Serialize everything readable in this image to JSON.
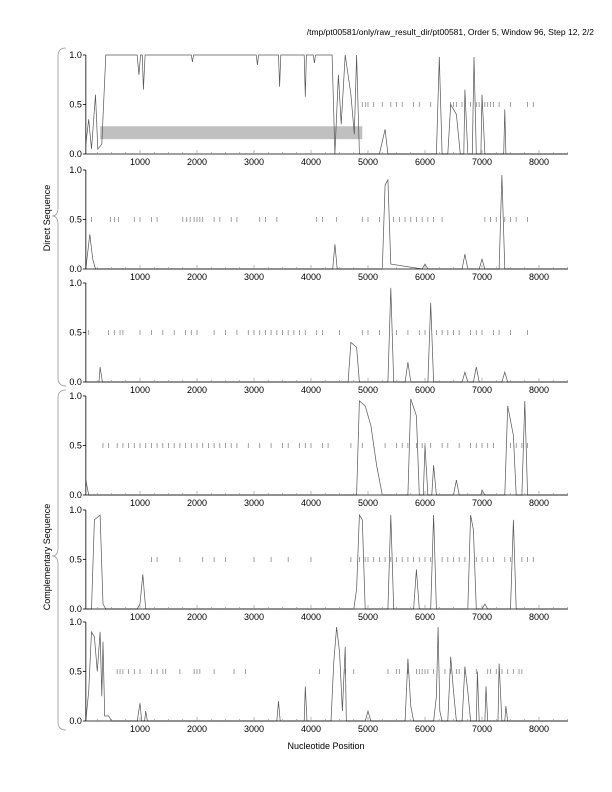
{
  "chart_data": {
    "type": "line",
    "title": "/tmp/pt00581/only/raw_result_dir/pt00581, Order 5, Window 96, Step 12, 2/2",
    "xlabel": "Nucleotide Position",
    "group_labels": [
      "Direct Sequence",
      "Complementary Sequence"
    ],
    "xlim": [
      50,
      8500
    ],
    "ylim": [
      0,
      1
    ],
    "xticks": [
      1000,
      2000,
      3000,
      4000,
      5000,
      6000,
      7000,
      8000
    ],
    "yticks": [
      "0.0",
      "0.5",
      "1.0"
    ],
    "line_color": "#555555",
    "stop_color": "#888888",
    "region_color": "#c0c0c0",
    "panels": [
      {
        "frame": 1,
        "region": [
          300,
          4900,
          0.15,
          0.28
        ],
        "points": [
          [
            50,
            0.1
          ],
          [
            100,
            0.35
          ],
          [
            150,
            0.05
          ],
          [
            220,
            0.6
          ],
          [
            260,
            0.05
          ],
          [
            330,
            0.1
          ],
          [
            400,
            1
          ],
          [
            950,
            1
          ],
          [
            980,
            0.8
          ],
          [
            1010,
            1
          ],
          [
            1040,
            1
          ],
          [
            1060,
            0.65
          ],
          [
            1090,
            1
          ],
          [
            1900,
            1
          ],
          [
            1920,
            0.93
          ],
          [
            1940,
            1
          ],
          [
            3040,
            1
          ],
          [
            3060,
            0.9
          ],
          [
            3080,
            1
          ],
          [
            3430,
            1
          ],
          [
            3450,
            0.68
          ],
          [
            3470,
            1
          ],
          [
            3880,
            1
          ],
          [
            3900,
            0.58
          ],
          [
            3920,
            1
          ],
          [
            4040,
            1
          ],
          [
            4060,
            0.92
          ],
          [
            4080,
            1
          ],
          [
            4370,
            1
          ],
          [
            4420,
            0.0
          ],
          [
            4480,
            0.8
          ],
          [
            4530,
            0.3
          ],
          [
            4600,
            1
          ],
          [
            4700,
            0.6
          ],
          [
            4760,
            0.2
          ],
          [
            4800,
            1
          ],
          [
            4850,
            0
          ],
          [
            5200,
            0
          ],
          [
            5300,
            0.25
          ],
          [
            5350,
            0
          ],
          [
            6200,
            0
          ],
          [
            6250,
            0.98
          ],
          [
            6300,
            0
          ],
          [
            6400,
            0
          ],
          [
            6450,
            0.5
          ],
          [
            6550,
            0.4
          ],
          [
            6620,
            0
          ],
          [
            6680,
            0
          ],
          [
            6700,
            0.65
          ],
          [
            6750,
            0
          ],
          [
            6830,
            0
          ],
          [
            6860,
            0.98
          ],
          [
            6900,
            0
          ],
          [
            6980,
            0
          ],
          [
            7000,
            0.6
          ],
          [
            7050,
            0
          ],
          [
            7380,
            0
          ],
          [
            7400,
            0.45
          ],
          [
            7420,
            0
          ],
          [
            8500,
            0
          ]
        ],
        "stops": [
          4900,
          4960,
          5000,
          5100,
          5250,
          5400,
          5500,
          5600,
          5800,
          5900,
          6100,
          6450,
          6500,
          6550,
          6650,
          6800,
          6900,
          6950,
          7000,
          7050,
          7100,
          7150,
          7200,
          7300,
          7500,
          7800,
          7900
        ]
      },
      {
        "frame": 2,
        "points": [
          [
            50,
            0
          ],
          [
            120,
            0.35
          ],
          [
            170,
            0.1
          ],
          [
            220,
            0
          ],
          [
            4380,
            0
          ],
          [
            4420,
            0.25
          ],
          [
            4460,
            0
          ],
          [
            5250,
            0
          ],
          [
            5300,
            0.85
          ],
          [
            5350,
            0.9
          ],
          [
            5400,
            0.05
          ],
          [
            5950,
            0
          ],
          [
            6000,
            0.05
          ],
          [
            6050,
            0
          ],
          [
            6650,
            0
          ],
          [
            6700,
            0.15
          ],
          [
            6750,
            0
          ],
          [
            6950,
            0
          ],
          [
            7000,
            0.1
          ],
          [
            7050,
            0
          ],
          [
            7300,
            0
          ],
          [
            7350,
            0.95
          ],
          [
            7400,
            0
          ],
          [
            8500,
            0
          ]
        ],
        "stops": [
          150,
          480,
          550,
          620,
          900,
          1000,
          1200,
          1300,
          1750,
          1820,
          1880,
          1950,
          2000,
          2050,
          2100,
          2300,
          2400,
          2600,
          2700,
          3100,
          3200,
          3400,
          4100,
          4200,
          4450,
          4900,
          5000,
          5200,
          5450,
          5550,
          5650,
          5750,
          5850,
          5950,
          6050,
          6150,
          6300,
          7050,
          7150,
          7250,
          7400,
          7500,
          7600,
          7800
        ]
      },
      {
        "frame": 3,
        "points": [
          [
            50,
            0
          ],
          [
            280,
            0
          ],
          [
            300,
            0.15
          ],
          [
            340,
            0
          ],
          [
            4650,
            0
          ],
          [
            4700,
            0.4
          ],
          [
            4800,
            0.35
          ],
          [
            4850,
            0
          ],
          [
            5350,
            0
          ],
          [
            5400,
            0.95
          ],
          [
            5450,
            0
          ],
          [
            5650,
            0
          ],
          [
            5700,
            0.2
          ],
          [
            5750,
            0
          ],
          [
            6050,
            0
          ],
          [
            6100,
            0.8
          ],
          [
            6150,
            0
          ],
          [
            6650,
            0
          ],
          [
            6700,
            0.1
          ],
          [
            6750,
            0
          ],
          [
            6850,
            0
          ],
          [
            6900,
            0.15
          ],
          [
            6950,
            0
          ],
          [
            7350,
            0
          ],
          [
            7400,
            0.1
          ],
          [
            7450,
            0
          ],
          [
            8500,
            0
          ]
        ],
        "stops": [
          100,
          450,
          550,
          650,
          700,
          1000,
          1200,
          1400,
          1600,
          1800,
          1900,
          2000,
          2300,
          2500,
          2700,
          2900,
          3000,
          3100,
          3200,
          3300,
          3400,
          3500,
          3600,
          3700,
          3800,
          3900,
          4100,
          4200,
          4500,
          4900,
          5000,
          5200,
          5500,
          5700,
          5900,
          6000,
          6200,
          6300,
          6400,
          6500,
          6600,
          6800,
          6900,
          7000,
          7200,
          7300,
          7500,
          7800
        ]
      },
      {
        "frame": 4,
        "points": [
          [
            50,
            0.15
          ],
          [
            100,
            0
          ],
          [
            4800,
            0
          ],
          [
            4850,
            0.95
          ],
          [
            4950,
            0.9
          ],
          [
            5050,
            0.7
          ],
          [
            5150,
            0.3
          ],
          [
            5250,
            0
          ],
          [
            5700,
            0
          ],
          [
            5750,
            0.97
          ],
          [
            5850,
            0.8
          ],
          [
            5900,
            0
          ],
          [
            5970,
            0
          ],
          [
            6000,
            0.5
          ],
          [
            6050,
            0
          ],
          [
            6120,
            0
          ],
          [
            6150,
            0.3
          ],
          [
            6200,
            0
          ],
          [
            6500,
            0
          ],
          [
            6550,
            0.15
          ],
          [
            6600,
            0
          ],
          [
            6980,
            0
          ],
          [
            7000,
            0.05
          ],
          [
            7050,
            0
          ],
          [
            7400,
            0
          ],
          [
            7450,
            0.9
          ],
          [
            7550,
            0.6
          ],
          [
            7600,
            0
          ],
          [
            7700,
            0
          ],
          [
            7750,
            0.95
          ],
          [
            7800,
            0
          ],
          [
            8500,
            0
          ]
        ],
        "stops": [
          350,
          450,
          600,
          700,
          800,
          900,
          1000,
          1100,
          1200,
          1300,
          1400,
          1500,
          1600,
          1700,
          1800,
          1900,
          2000,
          2100,
          2200,
          2300,
          2400,
          2500,
          2600,
          2700,
          2900,
          3100,
          3300,
          3500,
          3600,
          3800,
          3900,
          4000,
          4200,
          4300,
          4700,
          4900,
          5300,
          5500,
          5600,
          5700,
          5850,
          5950,
          6000,
          6100,
          6300,
          6400,
          6600,
          6800,
          6900,
          7000,
          7100,
          7200,
          7500,
          7600,
          7700,
          7800
        ]
      },
      {
        "frame": 5,
        "points": [
          [
            50,
            0
          ],
          [
            150,
            0
          ],
          [
            200,
            0.9
          ],
          [
            300,
            0.95
          ],
          [
            350,
            0.05
          ],
          [
            400,
            0
          ],
          [
            950,
            0
          ],
          [
            1000,
            0.05
          ],
          [
            1050,
            0.35
          ],
          [
            1100,
            0
          ],
          [
            4750,
            0
          ],
          [
            4800,
            0.2
          ],
          [
            4850,
            0.95
          ],
          [
            4900,
            0.9
          ],
          [
            4950,
            0
          ],
          [
            5350,
            0
          ],
          [
            5400,
            0.95
          ],
          [
            5450,
            0
          ],
          [
            5800,
            0
          ],
          [
            5850,
            0.4
          ],
          [
            5900,
            0
          ],
          [
            6100,
            0
          ],
          [
            6150,
            0.95
          ],
          [
            6200,
            0
          ],
          [
            6750,
            0
          ],
          [
            6800,
            0.95
          ],
          [
            6850,
            0.8
          ],
          [
            6900,
            0
          ],
          [
            7000,
            0
          ],
          [
            7050,
            0.05
          ],
          [
            7100,
            0
          ],
          [
            7500,
            0
          ],
          [
            7550,
            0.9
          ],
          [
            7600,
            0
          ],
          [
            8500,
            0
          ]
        ],
        "stops": [
          1200,
          1300,
          1700,
          2100,
          2300,
          2500,
          3000,
          3300,
          3600,
          4000,
          4700,
          4850,
          4950,
          5000,
          5100,
          5200,
          5300,
          5400,
          5500,
          5600,
          5700,
          5800,
          5900,
          6000,
          6100,
          6300,
          6400,
          6500,
          6600,
          6700,
          6900,
          7000,
          7100,
          7200,
          7400,
          7500,
          7700,
          7800,
          7900
        ]
      },
      {
        "frame": 6,
        "points": [
          [
            50,
            0
          ],
          [
            100,
            0.3
          ],
          [
            150,
            0.9
          ],
          [
            200,
            0.85
          ],
          [
            250,
            0.5
          ],
          [
            300,
            0.9
          ],
          [
            330,
            0.25
          ],
          [
            350,
            0.8
          ],
          [
            380,
            0.05
          ],
          [
            450,
            0.05
          ],
          [
            500,
            0
          ],
          [
            950,
            0
          ],
          [
            1000,
            0.18
          ],
          [
            1030,
            0
          ],
          [
            1080,
            0
          ],
          [
            1100,
            0.1
          ],
          [
            1130,
            0
          ],
          [
            3400,
            0
          ],
          [
            3430,
            0.2
          ],
          [
            3460,
            0
          ],
          [
            3880,
            0
          ],
          [
            3900,
            0.35
          ],
          [
            3930,
            0
          ],
          [
            4350,
            0
          ],
          [
            4400,
            0.6
          ],
          [
            4450,
            0.95
          ],
          [
            4500,
            0.7
          ],
          [
            4550,
            0.1
          ],
          [
            4600,
            0.75
          ],
          [
            4620,
            0
          ],
          [
            4950,
            0
          ],
          [
            5000,
            0.1
          ],
          [
            5050,
            0
          ],
          [
            5650,
            0
          ],
          [
            5700,
            0.63
          ],
          [
            5750,
            0.15
          ],
          [
            5800,
            0
          ],
          [
            6150,
            0
          ],
          [
            6200,
            0.25
          ],
          [
            6230,
            0.95
          ],
          [
            6260,
            0.1
          ],
          [
            6300,
            0
          ],
          [
            6400,
            0
          ],
          [
            6450,
            0.65
          ],
          [
            6500,
            0.3
          ],
          [
            6550,
            0
          ],
          [
            6650,
            0
          ],
          [
            6700,
            0.55
          ],
          [
            6750,
            0.3
          ],
          [
            6800,
            0
          ],
          [
            6900,
            0
          ],
          [
            6920,
            0.5
          ],
          [
            6950,
            0
          ],
          [
            7050,
            0
          ],
          [
            7070,
            0.35
          ],
          [
            7100,
            0
          ],
          [
            7280,
            0
          ],
          [
            7300,
            0.58
          ],
          [
            7350,
            0
          ],
          [
            7400,
            0
          ],
          [
            7420,
            0.15
          ],
          [
            7450,
            0
          ],
          [
            8500,
            0
          ]
        ],
        "stops": [
          600,
          650,
          700,
          800,
          900,
          1000,
          1200,
          1300,
          1400,
          1450,
          1700,
          1950,
          2000,
          2050,
          2300,
          2650,
          2850,
          4150,
          4600,
          4750,
          5350,
          5500,
          5550,
          5700,
          5850,
          5900,
          5950,
          6000,
          6050,
          6150,
          6350,
          6450,
          6550,
          6600,
          6700,
          6900,
          7100,
          7150,
          7250,
          7350,
          7450,
          7550,
          7650,
          7700
        ]
      }
    ]
  }
}
